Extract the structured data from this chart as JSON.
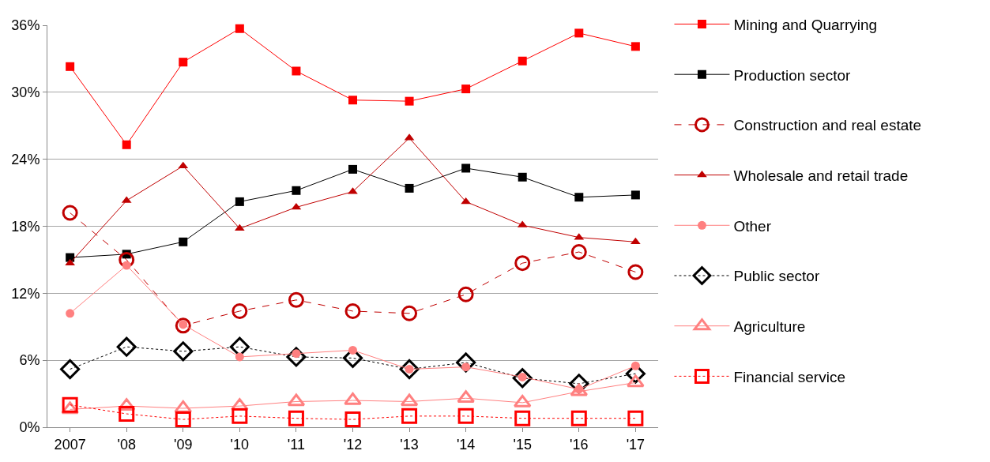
{
  "chart_data": {
    "type": "line",
    "categories": [
      "2007",
      "'08",
      "'09",
      "'10",
      "'11",
      "'12",
      "'13",
      "'14",
      "'15",
      "'16",
      "'17"
    ],
    "series": [
      {
        "name": "Mining and Quarrying",
        "color": "#ff0000",
        "marker": "square",
        "line_style": "solid",
        "values": [
          32.3,
          25.3,
          32.7,
          35.7,
          31.9,
          29.3,
          29.2,
          30.3,
          32.8,
          35.3,
          34.1
        ]
      },
      {
        "name": "Production sector",
        "color": "#000000",
        "marker": "square",
        "line_style": "solid",
        "values": [
          15.2,
          15.5,
          16.6,
          20.2,
          21.2,
          23.1,
          21.4,
          23.2,
          22.4,
          20.6,
          20.8
        ]
      },
      {
        "name": "Construction and real estate",
        "color": "#c00000",
        "marker": "circle-open",
        "line_style": "dashed",
        "values": [
          19.2,
          15.0,
          9.1,
          10.4,
          11.4,
          10.4,
          10.2,
          11.9,
          14.7,
          15.7,
          13.9
        ]
      },
      {
        "name": "Wholesale and retail trade",
        "color": "#c00000",
        "marker": "triangle",
        "line_style": "solid",
        "values": [
          14.7,
          20.3,
          23.4,
          17.8,
          19.7,
          21.1,
          25.9,
          20.2,
          18.1,
          17.0,
          16.6
        ]
      },
      {
        "name": "Other",
        "color": "#ff8080",
        "marker": "circle",
        "line_style": "solid",
        "values": [
          10.2,
          14.5,
          9.2,
          6.3,
          6.6,
          6.9,
          5.2,
          5.4,
          4.5,
          3.4,
          5.5
        ]
      },
      {
        "name": "Public sector",
        "color": "#000000",
        "marker": "diamond-open",
        "line_style": "dotted",
        "values": [
          5.2,
          7.2,
          6.8,
          7.2,
          6.3,
          6.2,
          5.2,
          5.8,
          4.4,
          3.9,
          4.8
        ]
      },
      {
        "name": "Agriculture",
        "color": "#ff8080",
        "marker": "triangle-open",
        "line_style": "solid",
        "values": [
          1.6,
          1.9,
          1.7,
          1.9,
          2.3,
          2.4,
          2.3,
          2.6,
          2.2,
          3.2,
          4.0
        ]
      },
      {
        "name": "Financial service",
        "color": "#ff0000",
        "marker": "square-open",
        "line_style": "dotted",
        "values": [
          2.0,
          1.2,
          0.7,
          1.0,
          0.8,
          0.7,
          1.0,
          1.0,
          0.8,
          0.8,
          0.8
        ]
      }
    ],
    "ylim": [
      0,
      36
    ],
    "yticks": [
      {
        "value": 0,
        "label": "0%"
      },
      {
        "value": 6,
        "label": "6%"
      },
      {
        "value": 12,
        "label": "12%"
      },
      {
        "value": 18,
        "label": "18%"
      },
      {
        "value": 24,
        "label": "24%"
      },
      {
        "value": 30,
        "label": "30%"
      },
      {
        "value": 36,
        "label": "36%"
      }
    ],
    "grid": "y",
    "legend": "right"
  }
}
